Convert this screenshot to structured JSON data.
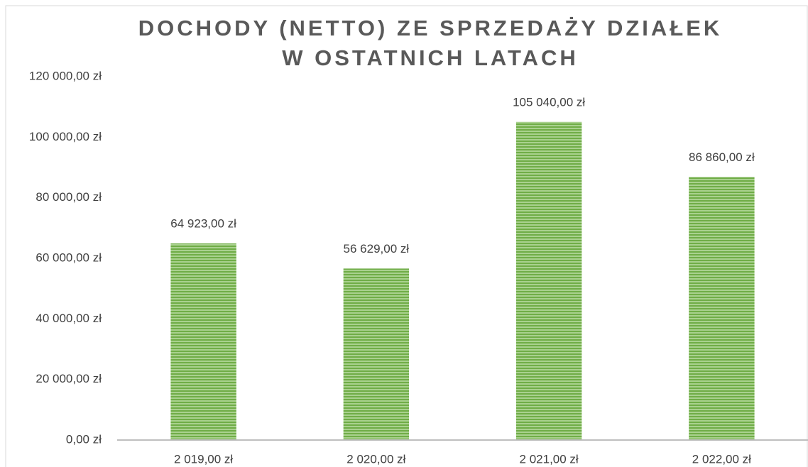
{
  "chart_data": {
    "type": "bar",
    "title": [
      "DOCHODY (NETTO) ZE SPRZEDAŻY DZIAŁEK",
      "W OSTATNICH LATACH"
    ],
    "categories": [
      "2 019,00 zł",
      "2 020,00 zł",
      "2 021,00 zł",
      "2 022,00 zł"
    ],
    "values": [
      64923,
      56629,
      105040,
      86860
    ],
    "value_labels": [
      "64 923,00 zł",
      "56 629,00 zł",
      "105 040,00 zł",
      "86 860,00 zł"
    ],
    "color": "#70ad47",
    "ylim": [
      0,
      120000
    ],
    "yticks": [
      {
        "value": 0,
        "label": "0,00 zł"
      },
      {
        "value": 20000,
        "label": "20 000,00 zł"
      },
      {
        "value": 40000,
        "label": "40 000,00 zł"
      },
      {
        "value": 60000,
        "label": "60 000,00 zł"
      },
      {
        "value": 80000,
        "label": "80 000,00 zł"
      },
      {
        "value": 100000,
        "label": "100 000,00 zł"
      },
      {
        "value": 120000,
        "label": "120 000,00 zł"
      }
    ],
    "grid": false
  }
}
